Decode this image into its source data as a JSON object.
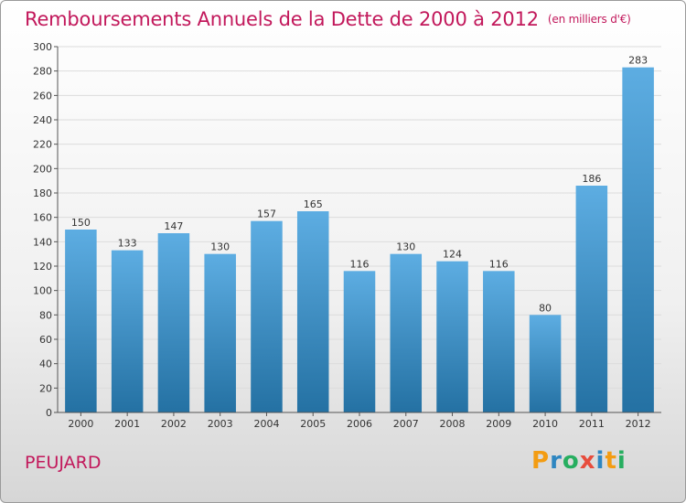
{
  "header": {
    "title": "Remboursements Annuels de la Dette de 2000 à 2012",
    "unit": "(en milliers d'€)"
  },
  "footer": {
    "commune": "PEUJARD",
    "logo_text": "Proxiti",
    "logo_letters": [
      {
        "ch": "P",
        "color": "#f39c12"
      },
      {
        "ch": "r",
        "color": "#2e86c1"
      },
      {
        "ch": "o",
        "color": "#27ae60"
      },
      {
        "ch": "x",
        "color": "#e74c3c"
      },
      {
        "ch": "i",
        "color": "#2e86c1"
      },
      {
        "ch": "t",
        "color": "#f39c12"
      },
      {
        "ch": "i",
        "color": "#27ae60"
      }
    ]
  },
  "chart_data": {
    "type": "bar",
    "categories": [
      "2000",
      "2001",
      "2002",
      "2003",
      "2004",
      "2005",
      "2006",
      "2007",
      "2008",
      "2009",
      "2010",
      "2011",
      "2012"
    ],
    "values": [
      150,
      133,
      147,
      130,
      157,
      165,
      116,
      130,
      124,
      116,
      80,
      186,
      283
    ],
    "ylim": [
      0,
      300
    ],
    "yticks": [
      0,
      20,
      40,
      60,
      80,
      100,
      120,
      140,
      160,
      180,
      200,
      220,
      240,
      260,
      280,
      300
    ],
    "grid": true,
    "bar_color_top": "#5dade2",
    "bar_color_bottom": "#2471a3",
    "label_color": "#333333"
  }
}
